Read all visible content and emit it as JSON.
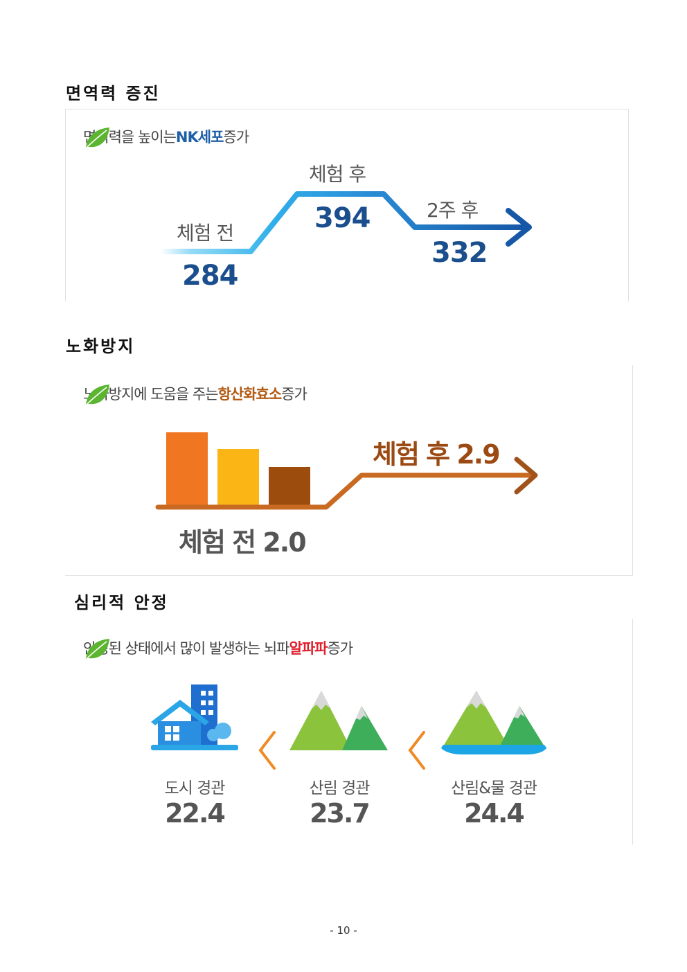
{
  "sections": {
    "immune": {
      "title": "면역력 증진",
      "caption_pre": "면역력을 높이는 ",
      "caption_hl": "NK세포",
      "caption_post": " 증가",
      "before_label": "체험 전",
      "before_value": "284",
      "after_label": "체험 후",
      "after_value": "394",
      "weeks_label": "2주 후",
      "weeks_value": "332"
    },
    "aging": {
      "title": "노화방지",
      "caption_pre": "노화방지에 도움을 주는 ",
      "caption_hl": "항산화효소",
      "caption_post": " 증가",
      "after_text": "체험 후 2.9",
      "before_text": "체험 전 2.0"
    },
    "psych": {
      "title": "심리적 안정",
      "caption_pre": "안정된 상태에서 많이 발생하는 뇌파 ",
      "caption_hl": "알파파",
      "caption_post": " 증가",
      "scenes": [
        {
          "label": "도시 경관",
          "value": "22.4"
        },
        {
          "label": "산림 경관",
          "value": "23.7"
        },
        {
          "label": "산림&물 경관",
          "value": "24.4"
        }
      ]
    }
  },
  "page_number": "- 10 -",
  "icons": {
    "leaf": "leaf-icon",
    "building": "city-building-icon",
    "mountain": "mountain-icon",
    "mountain_water": "mountain-water-icon",
    "chevron": "chevron-left-icon"
  },
  "colors": {
    "leaf": "#5cb531",
    "blue_highlight": "#1f5fa8",
    "brown_highlight": "#b25a12",
    "red_highlight": "#e0202e",
    "orange_bar": "#f07622",
    "yellow_bar": "#fbb616",
    "brown_bar": "#9c4c0c"
  }
}
